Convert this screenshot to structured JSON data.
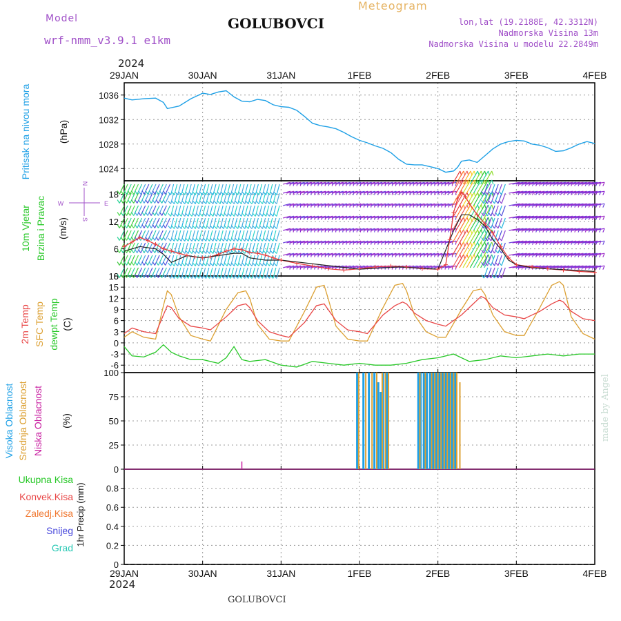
{
  "header": {
    "model_label": "Model",
    "model_name": "wrf-nmm_v3.9.1 e1km",
    "station": "GOLUBOVCI",
    "meteogram": "Meteogram",
    "lonlat": "lon,lat (19.2188E, 42.3312N)",
    "altitude": "Nadmorska Visina 13m",
    "model_altitude": "Nadmorska Visina u modelu 22.2849m",
    "year_top": "2024",
    "year_bottom": "2024",
    "footer_station": "GOLUBOVCI",
    "credit": "made by Angel"
  },
  "colors": {
    "pressure": "#1ea0e6",
    "speed": "#e83d3d",
    "speed_mean": "#222222",
    "temp2m": "#e84545",
    "sfc_temp": "#dca032",
    "dewpoint": "#28c828",
    "cloud_high": "#1ea0e6",
    "cloud_mid": "#dca032",
    "cloud_low": "#c81ea0",
    "label_model": "#a050c8",
    "meteogram_title": "#e6b464",
    "credit": "#c8dcd2"
  },
  "compass": {
    "n": "N",
    "s": "S",
    "e": "E",
    "w": "W"
  },
  "chart_data": [
    {
      "panel": "pressure",
      "type": "line",
      "title_lines": [
        "Pritisak na nivou mora"
      ],
      "unit": "(hPa)",
      "ylim": [
        1022,
        1038
      ],
      "yticks": [
        1024,
        1028,
        1032,
        1036
      ],
      "x_ticks": [
        "29JAN",
        "30JAN",
        "31JAN",
        "1FEB",
        "2FEB",
        "3FEB",
        "4FEB"
      ],
      "xlim_days": [
        0,
        6
      ],
      "grid": true,
      "series": [
        {
          "x": [
            0,
            0.1,
            0.25,
            0.4,
            0.5,
            0.55,
            0.7,
            0.85,
            1.0,
            1.1,
            1.2,
            1.3,
            1.4,
            1.5,
            1.6,
            1.7,
            1.8,
            1.9,
            2.0,
            2.1,
            2.2,
            2.3,
            2.4,
            2.5,
            2.6,
            2.7,
            2.8,
            2.9,
            3.0,
            3.1,
            3.2,
            3.3,
            3.4,
            3.5,
            3.6,
            3.7,
            3.8,
            3.9,
            4.0,
            4.1,
            4.2,
            4.25,
            4.3,
            4.4,
            4.5,
            4.6,
            4.7,
            4.8,
            4.9,
            5.0,
            5.1,
            5.2,
            5.3,
            5.4,
            5.5,
            5.6,
            5.7,
            5.8,
            5.9,
            6.0
          ],
          "y": [
            1035.5,
            1035.2,
            1035.4,
            1035.5,
            1034.8,
            1033.8,
            1034.2,
            1035.4,
            1036.3,
            1036.1,
            1036.5,
            1036.7,
            1035.7,
            1035.0,
            1034.9,
            1035.3,
            1035.1,
            1034.4,
            1034.1,
            1034.0,
            1033.5,
            1032.5,
            1031.4,
            1031.0,
            1030.8,
            1030.5,
            1029.9,
            1029.2,
            1028.6,
            1028.2,
            1027.7,
            1027.3,
            1026.6,
            1025.5,
            1024.7,
            1024.6,
            1024.6,
            1024.3,
            1024.0,
            1023.4,
            1023.6,
            1024.2,
            1025.2,
            1025.4,
            1025.0,
            1026.1,
            1027.2,
            1028.0,
            1028.4,
            1028.6,
            1028.5,
            1028.0,
            1027.8,
            1027.4,
            1026.8,
            1026.9,
            1027.4,
            1028.0,
            1028.4,
            1028.1
          ]
        }
      ]
    },
    {
      "panel": "wind",
      "type": "line",
      "title_lines": [
        "10m Vjetar",
        "Brzina i Pravac"
      ],
      "unit": "(m/s)",
      "ylim": [
        0,
        21
      ],
      "yticks": [
        0,
        6,
        12,
        18
      ],
      "grid": true,
      "series": [
        {
          "name": "speed",
          "x": [
            0,
            0.1,
            0.2,
            0.3,
            0.4,
            0.5,
            0.6,
            0.7,
            0.8,
            0.9,
            1.0,
            1.1,
            1.2,
            1.3,
            1.4,
            1.5,
            1.6,
            1.7,
            1.8,
            1.9,
            2.0,
            2.2,
            2.4,
            2.6,
            2.8,
            3.0,
            3.2,
            3.4,
            3.6,
            3.8,
            4.0,
            4.1,
            4.15,
            4.2,
            4.25,
            4.3,
            4.35,
            4.4,
            4.5,
            4.6,
            4.7,
            4.8,
            4.9,
            5.0,
            5.2,
            5.4,
            5.6,
            5.8,
            6.0
          ],
          "y": [
            6.5,
            7.5,
            8.5,
            7.8,
            7.0,
            6.0,
            5.5,
            5.0,
            4.5,
            4.2,
            4.0,
            4.2,
            4.8,
            5.5,
            6.0,
            5.8,
            5.2,
            5.0,
            4.6,
            4.0,
            3.5,
            2.8,
            2.2,
            1.6,
            1.3,
            1.6,
            2.0,
            2.2,
            2.0,
            1.6,
            1.5,
            2.5,
            8.0,
            14.0,
            17.0,
            18.5,
            17.5,
            16.0,
            13.5,
            11.5,
            9.5,
            6.5,
            4.0,
            2.5,
            2.0,
            1.6,
            1.3,
            1.0,
            0.8
          ]
        },
        {
          "name": "mean",
          "x": [
            0,
            0.2,
            0.4,
            0.5,
            0.6,
            0.8,
            1.0,
            1.2,
            1.4,
            1.5,
            1.6,
            1.8,
            2.0,
            2.5,
            3.0,
            3.5,
            4.0,
            4.2,
            4.3,
            4.4,
            4.5,
            4.6,
            4.7,
            4.8,
            4.9,
            5.0,
            5.2,
            5.5,
            6.0
          ],
          "y": [
            5.5,
            6.5,
            6.0,
            4.8,
            3.0,
            4.5,
            4.0,
            4.5,
            5.0,
            5.0,
            4.0,
            3.5,
            3.5,
            2.5,
            1.5,
            2.0,
            1.5,
            10.0,
            13.5,
            13.5,
            12.5,
            11.0,
            8.0,
            6.0,
            3.5,
            2.5,
            1.8,
            1.5,
            1.0
          ]
        }
      ]
    },
    {
      "panel": "temperature",
      "type": "line",
      "title_lines": [
        "2m Temp",
        "SFC Temp",
        "dewpt Temp"
      ],
      "unit": "(C)",
      "ylim": [
        -8,
        18
      ],
      "yticks": [
        -6,
        -3,
        0,
        3,
        6,
        9,
        12,
        15,
        18
      ],
      "grid": true,
      "series": [
        {
          "name": "2m Temp",
          "x": [
            0,
            0.1,
            0.25,
            0.4,
            0.5,
            0.55,
            0.6,
            0.7,
            0.85,
            1.0,
            1.1,
            1.3,
            1.45,
            1.55,
            1.6,
            1.7,
            1.85,
            2.0,
            2.1,
            2.3,
            2.45,
            2.55,
            2.6,
            2.7,
            2.85,
            3.0,
            3.1,
            3.3,
            3.45,
            3.55,
            3.6,
            3.7,
            3.85,
            4.0,
            4.1,
            4.3,
            4.45,
            4.55,
            4.6,
            4.7,
            4.85,
            5.0,
            5.1,
            5.3,
            5.45,
            5.55,
            5.6,
            5.7,
            5.85,
            6.0
          ],
          "y": [
            2.5,
            4.0,
            3.0,
            2.5,
            7.5,
            10.0,
            9.5,
            6.5,
            4.5,
            4.0,
            3.5,
            7.0,
            10.0,
            10.5,
            9.5,
            6.0,
            3.0,
            2.0,
            1.5,
            5.5,
            10.0,
            10.5,
            9.0,
            6.0,
            3.5,
            3.0,
            2.5,
            7.5,
            10.0,
            11.0,
            10.5,
            8.0,
            6.0,
            5.0,
            4.5,
            7.5,
            10.5,
            12.5,
            12.0,
            9.5,
            7.5,
            7.0,
            6.5,
            8.5,
            10.5,
            11.5,
            11.0,
            8.5,
            6.5,
            6.0
          ]
        },
        {
          "name": "SFC Temp",
          "x": [
            0,
            0.1,
            0.25,
            0.4,
            0.5,
            0.55,
            0.6,
            0.7,
            0.85,
            1.0,
            1.1,
            1.3,
            1.45,
            1.55,
            1.6,
            1.7,
            1.85,
            2.0,
            2.1,
            2.3,
            2.45,
            2.55,
            2.6,
            2.7,
            2.85,
            3.0,
            3.1,
            3.3,
            3.45,
            3.55,
            3.6,
            3.7,
            3.85,
            4.0,
            4.1,
            4.3,
            4.45,
            4.55,
            4.6,
            4.7,
            4.85,
            5.0,
            5.1,
            5.3,
            5.45,
            5.55,
            5.6,
            5.7,
            5.85,
            6.0
          ],
          "y": [
            1.5,
            3.0,
            1.5,
            1.0,
            10.0,
            14.0,
            13.0,
            7.0,
            2.0,
            1.0,
            0.5,
            9.0,
            13.5,
            14.0,
            12.0,
            5.0,
            1.0,
            0.5,
            0.5,
            8.5,
            15.0,
            15.5,
            12.0,
            4.5,
            1.0,
            0.5,
            0.5,
            9.5,
            15.5,
            16.0,
            14.0,
            7.5,
            3.0,
            1.5,
            1.5,
            9.0,
            14.0,
            14.5,
            13.0,
            7.5,
            3.0,
            2.0,
            2.0,
            9.5,
            15.5,
            16.5,
            15.5,
            7.0,
            2.5,
            1.0
          ]
        },
        {
          "name": "dewpt Temp",
          "x": [
            0,
            0.1,
            0.25,
            0.4,
            0.5,
            0.6,
            0.7,
            0.85,
            1.0,
            1.2,
            1.3,
            1.4,
            1.5,
            1.6,
            1.8,
            2.0,
            2.2,
            2.4,
            2.6,
            2.8,
            3.0,
            3.2,
            3.4,
            3.6,
            3.8,
            4.0,
            4.2,
            4.4,
            4.6,
            4.8,
            5.0,
            5.2,
            5.4,
            5.6,
            5.8,
            6.0
          ],
          "y": [
            -1.0,
            -3.5,
            -3.8,
            -2.5,
            -0.5,
            -2.5,
            -3.5,
            -4.5,
            -4.5,
            -5.5,
            -4.0,
            -1.0,
            -4.5,
            -5.0,
            -4.5,
            -6.0,
            -6.5,
            -5.0,
            -5.5,
            -6.0,
            -5.5,
            -6.0,
            -6.0,
            -5.5,
            -4.5,
            -4.0,
            -3.0,
            -5.0,
            -4.5,
            -3.5,
            -4.0,
            -3.5,
            -3.0,
            -3.5,
            -3.0,
            -3.0
          ]
        }
      ]
    },
    {
      "panel": "clouds",
      "type": "bar",
      "title_lines": [
        "Visoka Oblacnost",
        "Srednja Oblacnost",
        "Niska Oblacnost"
      ],
      "unit": "(%)",
      "ylim": [
        0,
        100
      ],
      "yticks": [
        0,
        25,
        50,
        75,
        100
      ],
      "grid": true,
      "series": [
        {
          "name": "Visoka Oblacnost",
          "x": [
            2.97,
            3.05,
            3.12,
            3.19,
            3.24,
            3.27,
            3.3,
            3.35,
            3.75,
            3.78,
            3.82,
            3.86,
            3.9,
            3.94,
            3.98,
            4.02,
            4.06,
            4.1,
            4.14,
            4.18,
            4.22
          ],
          "y": [
            100,
            100,
            100,
            100,
            90,
            80,
            100,
            100,
            100,
            100,
            100,
            100,
            100,
            100,
            100,
            100,
            100,
            100,
            100,
            100,
            100
          ]
        },
        {
          "name": "Srednja Oblacnost",
          "x": [
            2.99,
            3.08,
            3.16,
            3.22,
            3.29,
            3.33,
            3.37,
            3.77,
            3.84,
            3.92,
            3.96,
            4.0,
            4.04,
            4.08,
            4.12,
            4.16,
            4.2,
            4.24,
            4.28
          ],
          "y": [
            100,
            100,
            100,
            100,
            100,
            100,
            100,
            100,
            100,
            100,
            100,
            100,
            100,
            100,
            100,
            100,
            100,
            100,
            90
          ]
        },
        {
          "name": "Niska Oblacnost",
          "x": [
            1.5
          ],
          "y": [
            8
          ]
        }
      ]
    },
    {
      "panel": "precip",
      "type": "line",
      "title_lines": [
        "Ukupna Kisa",
        "Konvek.Kisa",
        "Zaledj.Kisa",
        "Snijeg",
        "Grad"
      ],
      "title_colors": [
        "#28c828",
        "#e84545",
        "#f07830",
        "#4646dc",
        "#28c8b4"
      ],
      "unit": "1hr Precip (mm)",
      "ylim": [
        0,
        1
      ],
      "yticks": [
        0,
        0.2,
        0.4,
        0.6,
        0.8
      ],
      "grid": true,
      "series": []
    }
  ]
}
